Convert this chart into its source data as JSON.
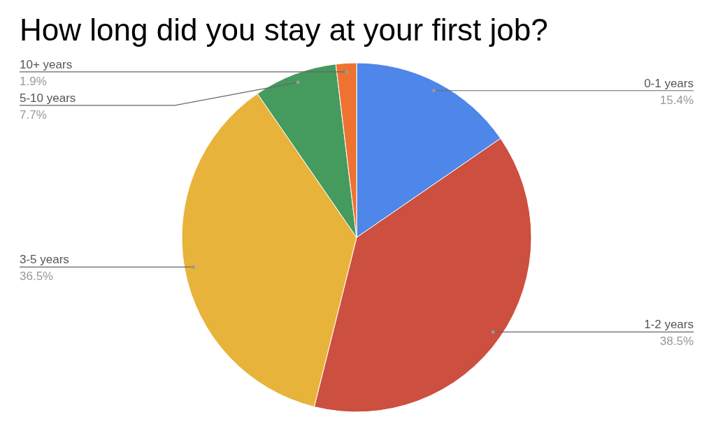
{
  "chart_data": {
    "type": "pie",
    "title": "How long did you stay at your first job?",
    "categories": [
      "0-1 years",
      "1-2 years",
      "3-5 years",
      "5-10 years",
      "10+ years"
    ],
    "values": [
      15.4,
      38.5,
      36.5,
      7.7,
      1.9
    ],
    "value_labels": [
      "15.4%",
      "38.5%",
      "36.5%",
      "7.7%",
      "1.9%"
    ],
    "colors": [
      "#4f86ea",
      "#cc4f3f",
      "#e8b33b",
      "#459a5e",
      "#ee7330"
    ],
    "legend": false
  }
}
